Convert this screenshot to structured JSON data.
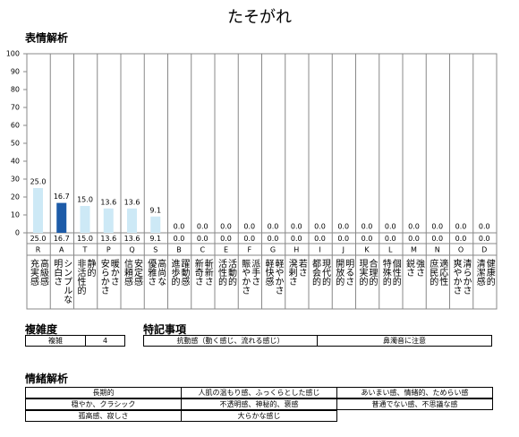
{
  "chart_data": {
    "type": "bar",
    "title": "たそがれ",
    "subtitle": "表情解析",
    "categories": [
      "R",
      "A",
      "T",
      "P",
      "Q",
      "S",
      "B",
      "C",
      "E",
      "F",
      "G",
      "H",
      "I",
      "J",
      "K",
      "L",
      "M",
      "N",
      "O",
      "D"
    ],
    "values": [
      25.0,
      16.7,
      15.0,
      13.6,
      13.6,
      9.1,
      0,
      0,
      0,
      0,
      0,
      0,
      0,
      0,
      0,
      0,
      0,
      0,
      0,
      0
    ],
    "value_labels": [
      "25.0",
      "16.7",
      "15.0",
      "13.6",
      "13.6",
      "9.1",
      "0.0",
      "0.0",
      "0.0",
      "0.0",
      "0.0",
      "0.0",
      "0.0",
      "0.0",
      "0.0",
      "0.0",
      "0.0",
      "0.0",
      "0.0",
      "0.0"
    ],
    "colors": [
      "#cde9f6",
      "#1d5ba8",
      "#cde9f6",
      "#cde9f6",
      "#cde9f6",
      "#cde9f6",
      "#cde9f6",
      "#cde9f6",
      "#cde9f6",
      "#cde9f6",
      "#cde9f6",
      "#cde9f6",
      "#cde9f6",
      "#cde9f6",
      "#cde9f6",
      "#cde9f6",
      "#cde9f6",
      "#cde9f6",
      "#cde9f6",
      "#cde9f6"
    ],
    "descriptors": [
      [
        "充実感",
        "高級感"
      ],
      [
        "明白さ",
        "シンプルな"
      ],
      [
        "非活性的",
        "静的"
      ],
      [
        "安らかさ",
        "暖かさ"
      ],
      [
        "信頼感",
        "安定感"
      ],
      [
        "優雅さ",
        "高尚な"
      ],
      [
        "進歩的",
        "躍動感"
      ],
      [
        "新奇さ",
        "斬新さ"
      ],
      [
        "活性的",
        "活動的"
      ],
      [
        "賑やかさ",
        "派手さ"
      ],
      [
        "軽快感",
        "軽やかさ"
      ],
      [
        "溌剌さ",
        "若さ"
      ],
      [
        "都会的",
        "現代的"
      ],
      [
        "開放的",
        "明るさ"
      ],
      [
        "現実的",
        "合理的"
      ],
      [
        "特殊的",
        "個性的"
      ],
      [
        "鋭さ",
        "強さ"
      ],
      [
        "庶民的",
        "適応性"
      ],
      [
        "爽やかさ",
        "清らかさ"
      ],
      [
        "清潔感",
        "健康的"
      ]
    ],
    "ylim": [
      0,
      100
    ],
    "yticks": [
      0,
      10,
      20,
      30,
      40,
      50,
      60,
      70,
      80,
      90,
      100
    ],
    "grid": false
  },
  "complexity": {
    "title": "複雑度",
    "label": "複雑",
    "value": 4
  },
  "notes": {
    "title": "特記事項",
    "items": [
      "抗動感（動く感じ、流れる感じ）",
      "鼻濁音に注意"
    ]
  },
  "emotion": {
    "title": "情緒解析",
    "rows": [
      [
        "長期的",
        "人肌の温もり感、ふっくらとした感じ",
        "あいまい感、情緒的、ためらい感"
      ],
      [
        "穏やか、クラシック",
        "不透明感、神秘的、褒感",
        "普通でない感、不思議な感"
      ],
      [
        "孤高感、寂しさ",
        "大らかな感じ"
      ]
    ]
  }
}
